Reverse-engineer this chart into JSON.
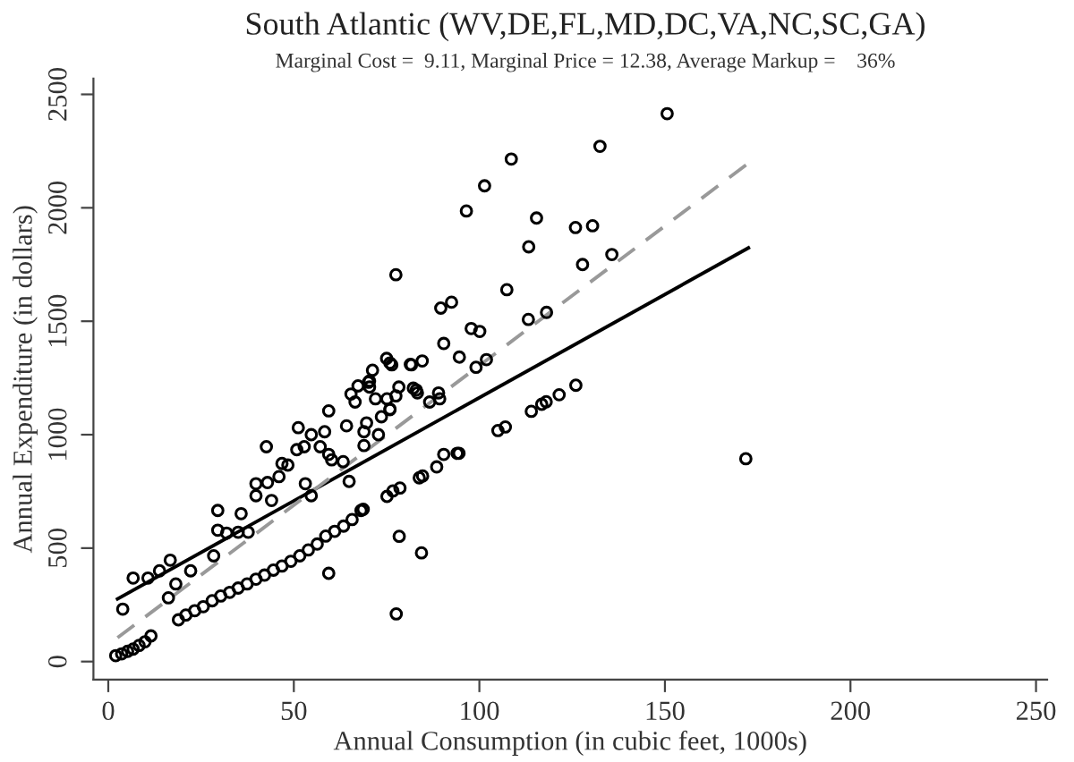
{
  "chart_data": {
    "type": "scatter",
    "title": "South Atlantic (WV,DE,FL,MD,DC,VA,NC,SC,GA)",
    "subtitle": "Marginal Cost =  9.11, Marginal Price = 12.38, Average Markup =    36%",
    "xlabel": "Annual Consumption (in cubic feet, 1000s)",
    "ylabel": "Annual Expenditure (in dollars)",
    "xlim": [
      -4,
      253
    ],
    "ylim": [
      -80,
      2570
    ],
    "xticks": [
      0,
      50,
      100,
      150,
      200,
      250
    ],
    "yticks": [
      0,
      500,
      1000,
      1500,
      2000,
      2500
    ],
    "grid": false,
    "legend": false,
    "series": [
      {
        "color": "#000000",
        "marker": "circle",
        "x": [
          2,
          3.6,
          5.2,
          6.7,
          8.3,
          9.9,
          11.5,
          18.9,
          20.9,
          23.3,
          25.6,
          28,
          30.3,
          32.7,
          35,
          37.4,
          39.8,
          42.1,
          44.5,
          46.8,
          49.2,
          51.6,
          53.9,
          56.3,
          58.6,
          61,
          63.4,
          65.7,
          68.1,
          68.7,
          75.1,
          76.7,
          78.6,
          83.8,
          84.7,
          88.5,
          90.4,
          94,
          94.5,
          105,
          107,
          114,
          116.8,
          118,
          121.5,
          126,
          3.9,
          59.4,
          77.6,
          78.4,
          84.4,
          171.8,
          6.7,
          10.7,
          13.8,
          16.7,
          16.2,
          18.2,
          22.2,
          28.4,
          29.5,
          29.5,
          31.9,
          35.8,
          35,
          37.7,
          39.8,
          39.8,
          42.6,
          42.9,
          44,
          46,
          46.8,
          48.4,
          50.8,
          51.2,
          52.8,
          53.1,
          54.7,
          54.7,
          57.1,
          58.3,
          59.4,
          59.4,
          60.2,
          63.3,
          64.9,
          64.2,
          65.4,
          66.5,
          68.9,
          68.9,
          69.6,
          70.4,
          72,
          72.8,
          73.6,
          75.1,
          75.9,
          77.5,
          75.9,
          78.3,
          81.4,
          83,
          70.1,
          75.9,
          82.2,
          83.3,
          86.6,
          89.3,
          89,
          150.6,
          132.5,
          108.6,
          101.4,
          96.5,
          115.4,
          125.9,
          130.5,
          113.3,
          135.7,
          127.8,
          77.5,
          107.4,
          92.5,
          89.6,
          113.2,
          118.1,
          97.8,
          100.1,
          90.4,
          94.6,
          101.9,
          99.1,
          75,
          76.4,
          81.7,
          84.6,
          71.2,
          70.4,
          67.3
        ],
        "values": [
          26,
          34,
          45,
          55,
          71,
          87,
          113,
          184,
          205,
          224,
          242,
          268,
          289,
          305,
          324,
          342,
          363,
          381,
          403,
          421,
          442,
          466,
          492,
          518,
          553,
          574,
          597,
          626,
          666,
          671,
          728,
          752,
          765,
          810,
          818,
          858,
          913,
          918,
          918,
          1018,
          1034,
          1103,
          1134,
          1145,
          1176,
          1218,
          231,
          389,
          210,
          552,
          479,
          894,
          368,
          368,
          400,
          447,
          281,
          342,
          400,
          466,
          579,
          666,
          566,
          652,
          570,
          570,
          784,
          731,
          947,
          789,
          710,
          815,
          873,
          866,
          934,
          1031,
          947,
          784,
          731,
          1000,
          947,
          1013,
          1105,
          913,
          889,
          881,
          794,
          1039,
          1179,
          1144,
          952,
          1013,
          1052,
          1210,
          1158,
          1000,
          1079,
          1158,
          1316,
          1171,
          1113,
          1210,
          1310,
          1197,
          1231,
          1110,
          1205,
          1184,
          1144,
          1158,
          1184,
          2415,
          2271,
          2215,
          2097,
          1986,
          1955,
          1913,
          1921,
          1828,
          1794,
          1750,
          1705,
          1639,
          1584,
          1558,
          1508,
          1539,
          1468,
          1455,
          1402,
          1342,
          1331,
          1297,
          1336,
          1308,
          1308,
          1325,
          1284,
          1237,
          1215
        ]
      },
      {
        "type": "line",
        "color": "#000000",
        "line_style": "solid",
        "x": [
          2.5,
          172.5
        ],
        "values": [
          276,
          1823
        ]
      },
      {
        "type": "line",
        "color": "#999999",
        "line_style": "dashed",
        "x": [
          2.5,
          172.5
        ],
        "values": [
          105,
          2197
        ]
      }
    ]
  }
}
